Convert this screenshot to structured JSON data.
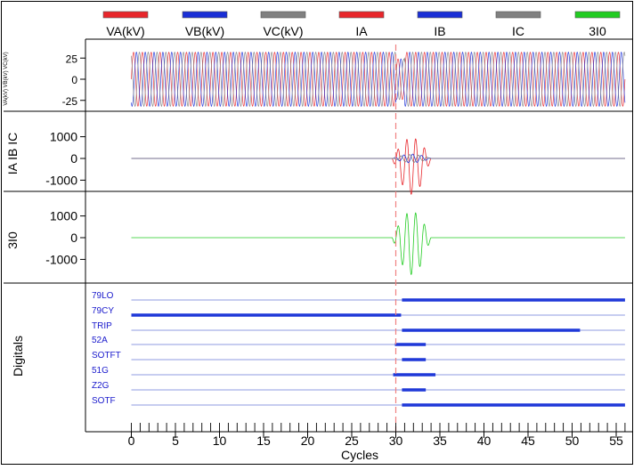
{
  "legend": [
    {
      "label": "VA(kV)",
      "color": "#e8262b"
    },
    {
      "label": "VB(kV)",
      "color": "#1a2fd6"
    },
    {
      "label": "VC(kV)",
      "color": "#808080"
    },
    {
      "label": "IA",
      "color": "#e8262b"
    },
    {
      "label": "IB",
      "color": "#1a2fd6"
    },
    {
      "label": "IC",
      "color": "#808080"
    },
    {
      "label": "3I0",
      "color": "#22cc22"
    }
  ],
  "colors": {
    "a_phase": "#e8262b",
    "b_phase": "#1a2fd6",
    "c_phase": "#808080",
    "residual": "#22cc22",
    "digital_text": "#1a1acc",
    "digital_line": "#1f38d8",
    "cursor": "#f08080"
  },
  "chart_data": {
    "type": "line",
    "xlabel": "Cycles",
    "xlim": [
      0,
      56
    ],
    "xticks": [
      0,
      5,
      10,
      15,
      20,
      25,
      30,
      35,
      40,
      45,
      50,
      55
    ],
    "cursor_x": 30,
    "panels": [
      {
        "ylabel": "VA(kV) VB(kV) VC(kV)",
        "yticks": [
          25,
          0,
          -25
        ],
        "ylim": [
          -35,
          35
        ],
        "series": [
          {
            "legend_label": "VA(kV)",
            "phase_deg": 0,
            "pre_amplitude": 32,
            "post_amplitude": 32
          },
          {
            "legend_label": "VB(kV)",
            "phase_deg": -120,
            "pre_amplitude": 32,
            "post_amplitude": 32
          },
          {
            "legend_label": "VC(kV)",
            "phase_deg": 120,
            "pre_amplitude": 32,
            "post_amplitude": 32
          }
        ],
        "fault": {
          "start": 30,
          "end": 31,
          "dip_amplitude": 24
        }
      },
      {
        "ylabel": "IA IB IC",
        "yticks": [
          1000,
          0,
          -1000
        ],
        "ylim": [
          -1700,
          1700
        ],
        "series": [
          {
            "legend_label": "IA",
            "baseline": 0,
            "fault_amplitude": 1300,
            "fault_start": 29.6,
            "fault_end": 34,
            "fault_offset": -350
          },
          {
            "legend_label": "IB",
            "baseline": 0,
            "fault_amplitude": 200,
            "fault_start": 29.6,
            "fault_end": 34,
            "fault_offset": 0
          },
          {
            "legend_label": "IC",
            "baseline": 0,
            "fault_amplitude": 180,
            "fault_start": 29.6,
            "fault_end": 34,
            "fault_offset": 0
          }
        ]
      },
      {
        "ylabel": "3I0",
        "yticks": [
          1000,
          0,
          -1000
        ],
        "ylim": [
          -1700,
          1700
        ],
        "series": [
          {
            "legend_label": "3I0",
            "baseline": 0,
            "fault_amplitude": 1450,
            "fault_start": 29.6,
            "fault_end": 34,
            "fault_offset": -250
          }
        ]
      }
    ],
    "digitals": {
      "ylabel": "Digitals",
      "channels": [
        {
          "name": "79LO",
          "on": [
            [
              30.7,
              56
            ]
          ]
        },
        {
          "name": "79CY",
          "on": [
            [
              0,
              30.6
            ]
          ]
        },
        {
          "name": "TRIP",
          "on": [
            [
              30.7,
              50.9
            ]
          ]
        },
        {
          "name": "52A",
          "on": [
            [
              29.9,
              33.4
            ]
          ]
        },
        {
          "name": "SOTFT",
          "on": [
            [
              30.7,
              33.4
            ]
          ]
        },
        {
          "name": "51G",
          "on": [
            [
              29.7,
              34.5
            ]
          ]
        },
        {
          "name": "Z2G",
          "on": [
            [
              30.7,
              33.4
            ]
          ]
        },
        {
          "name": "SOTF",
          "on": [
            [
              30.7,
              56
            ]
          ]
        }
      ]
    }
  }
}
